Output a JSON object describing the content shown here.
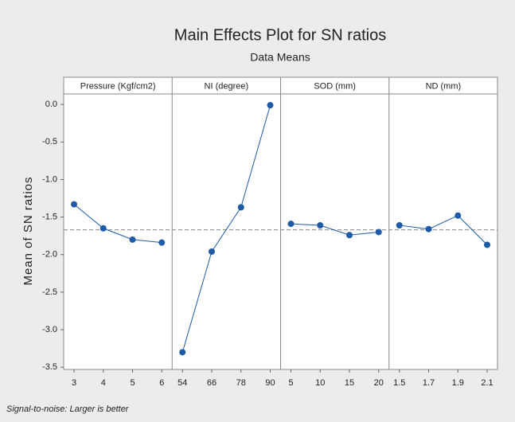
{
  "chart_data": {
    "type": "line",
    "title": "Main Effects Plot for SN ratios",
    "subtitle": "Data Means",
    "y_label": "Mean of SN ratios",
    "note": "Signal-to-noise: Larger is better",
    "color": "#1f5aa6",
    "mean_line": -1.67,
    "ylim": [
      -3.53,
      0.14
    ],
    "yticks": [
      {
        "value": 0,
        "label": "0.0"
      },
      -0.5,
      {
        "value": -1,
        "label": "-1.0"
      },
      -1.5,
      {
        "value": -2,
        "label": "-2.0"
      },
      -2.5,
      {
        "value": -3,
        "label": "-3.0"
      },
      -3.5
    ],
    "panels": [
      {
        "name": "Pressure (Kgf/cm2)",
        "categories": [
          "3",
          "4",
          "5",
          "6"
        ],
        "values": [
          -1.33,
          -1.65,
          -1.8,
          -1.84
        ]
      },
      {
        "name": "NI (degree)",
        "categories": [
          "54",
          "66",
          "78",
          "90"
        ],
        "values": [
          -3.3,
          -1.96,
          -1.37,
          -0.01
        ]
      },
      {
        "name": "SOD (mm)",
        "categories": [
          "5",
          "10",
          "15",
          "20"
        ],
        "values": [
          -1.59,
          -1.61,
          -1.74,
          -1.7
        ]
      },
      {
        "name": "ND (mm)",
        "categories": [
          "1.5",
          "1.7",
          "1.9",
          "2.1"
        ],
        "values": [
          -1.61,
          -1.66,
          -1.48,
          -1.87
        ]
      }
    ]
  }
}
